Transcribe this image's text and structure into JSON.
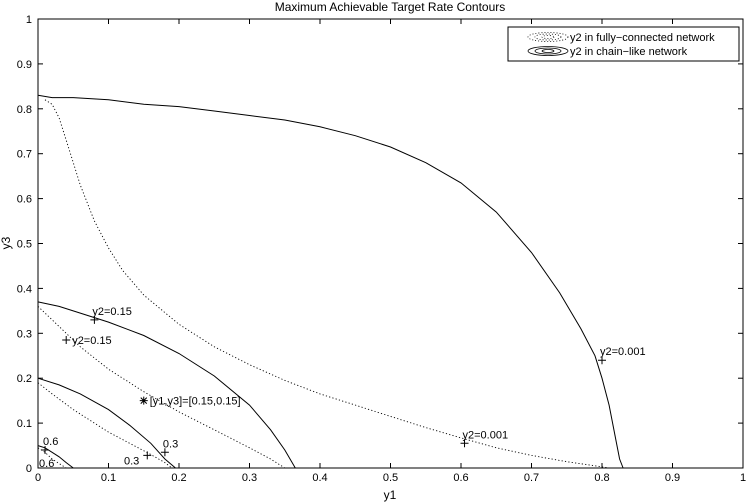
{
  "chart_data": {
    "type": "line",
    "title": "Maximum Achievable Target Rate Contours",
    "xlabel": "y1",
    "ylabel": "y3",
    "xlim": [
      0,
      1
    ],
    "ylim": [
      0,
      1
    ],
    "xticks": [
      "0",
      "0.1",
      "0.2",
      "0.3",
      "0.4",
      "0.5",
      "0.6",
      "0.7",
      "0.8",
      "0.9",
      "1"
    ],
    "yticks": [
      "0",
      "0.1",
      "0.2",
      "0.3",
      "0.4",
      "0.5",
      "0.6",
      "0.7",
      "0.8",
      "0.9",
      "1"
    ],
    "grid": false,
    "legend_position": "top-right",
    "legend": [
      {
        "label": "y2 in fully−connected network",
        "style": "dotted"
      },
      {
        "label": "y2 in chain−like network",
        "style": "solid"
      }
    ],
    "series": [
      {
        "legend": "y2 in fully−connected network",
        "style": "dotted",
        "level": "0.001",
        "points": [
          [
            0.01,
            0.82
          ],
          [
            0.02,
            0.81
          ],
          [
            0.03,
            0.78
          ],
          [
            0.04,
            0.73
          ],
          [
            0.05,
            0.68
          ],
          [
            0.06,
            0.63
          ],
          [
            0.08,
            0.55
          ],
          [
            0.1,
            0.49
          ],
          [
            0.12,
            0.44
          ],
          [
            0.15,
            0.385
          ],
          [
            0.2,
            0.32
          ],
          [
            0.25,
            0.27
          ],
          [
            0.3,
            0.23
          ],
          [
            0.35,
            0.195
          ],
          [
            0.4,
            0.165
          ],
          [
            0.45,
            0.14
          ],
          [
            0.5,
            0.115
          ],
          [
            0.55,
            0.09
          ],
          [
            0.6,
            0.067
          ],
          [
            0.65,
            0.045
          ],
          [
            0.7,
            0.028
          ],
          [
            0.75,
            0.014
          ],
          [
            0.79,
            0.005
          ],
          [
            0.81,
            0
          ]
        ]
      },
      {
        "legend": "y2 in fully−connected network",
        "style": "dotted",
        "level": "0.15",
        "points": [
          [
            0.0,
            0.36
          ],
          [
            0.02,
            0.33
          ],
          [
            0.04,
            0.3
          ],
          [
            0.06,
            0.27
          ],
          [
            0.08,
            0.245
          ],
          [
            0.1,
            0.22
          ],
          [
            0.15,
            0.17
          ],
          [
            0.2,
            0.125
          ],
          [
            0.25,
            0.085
          ],
          [
            0.3,
            0.045
          ],
          [
            0.33,
            0.02
          ],
          [
            0.35,
            0
          ]
        ]
      },
      {
        "legend": "y2 in fully−connected network",
        "style": "dotted",
        "level": "0.3",
        "points": [
          [
            0.0,
            0.19
          ],
          [
            0.02,
            0.165
          ],
          [
            0.05,
            0.13
          ],
          [
            0.08,
            0.1
          ],
          [
            0.1,
            0.08
          ],
          [
            0.13,
            0.055
          ],
          [
            0.16,
            0.03
          ],
          [
            0.18,
            0.012
          ],
          [
            0.19,
            0
          ]
        ]
      },
      {
        "legend": "y2 in fully−connected network",
        "style": "dotted",
        "level": "0.6",
        "points": [
          [
            0.0,
            0.045
          ],
          [
            0.01,
            0.035
          ],
          [
            0.02,
            0.02
          ],
          [
            0.03,
            0.01
          ],
          [
            0.04,
            0
          ]
        ]
      },
      {
        "legend": "y2 in chain−like network",
        "style": "solid",
        "level": "0.001",
        "points": [
          [
            0.0,
            0.83
          ],
          [
            0.02,
            0.825
          ],
          [
            0.05,
            0.825
          ],
          [
            0.1,
            0.82
          ],
          [
            0.15,
            0.81
          ],
          [
            0.2,
            0.805
          ],
          [
            0.25,
            0.795
          ],
          [
            0.3,
            0.785
          ],
          [
            0.35,
            0.775
          ],
          [
            0.4,
            0.76
          ],
          [
            0.45,
            0.74
          ],
          [
            0.5,
            0.715
          ],
          [
            0.55,
            0.68
          ],
          [
            0.6,
            0.635
          ],
          [
            0.65,
            0.57
          ],
          [
            0.7,
            0.48
          ],
          [
            0.74,
            0.39
          ],
          [
            0.77,
            0.31
          ],
          [
            0.79,
            0.25
          ],
          [
            0.8,
            0.2
          ],
          [
            0.81,
            0.14
          ],
          [
            0.815,
            0.1
          ],
          [
            0.82,
            0.06
          ],
          [
            0.825,
            0.02
          ],
          [
            0.83,
            0
          ]
        ]
      },
      {
        "legend": "y2 in chain−like network",
        "style": "solid",
        "level": "0.15",
        "points": [
          [
            0.0,
            0.37
          ],
          [
            0.03,
            0.36
          ],
          [
            0.06,
            0.345
          ],
          [
            0.1,
            0.325
          ],
          [
            0.15,
            0.295
          ],
          [
            0.2,
            0.255
          ],
          [
            0.25,
            0.205
          ],
          [
            0.3,
            0.14
          ],
          [
            0.33,
            0.085
          ],
          [
            0.35,
            0.04
          ],
          [
            0.365,
            0
          ]
        ]
      },
      {
        "legend": "y2 in chain−like network",
        "style": "solid",
        "level": "0.3",
        "points": [
          [
            0.0,
            0.2
          ],
          [
            0.03,
            0.185
          ],
          [
            0.06,
            0.165
          ],
          [
            0.1,
            0.13
          ],
          [
            0.13,
            0.095
          ],
          [
            0.16,
            0.055
          ],
          [
            0.18,
            0.02
          ],
          [
            0.195,
            0
          ]
        ]
      },
      {
        "legend": "y2 in chain−like network",
        "style": "solid",
        "level": "0.6",
        "points": [
          [
            0.0,
            0.05
          ],
          [
            0.01,
            0.045
          ],
          [
            0.02,
            0.035
          ],
          [
            0.03,
            0.025
          ],
          [
            0.04,
            0.012
          ],
          [
            0.05,
            0
          ]
        ]
      }
    ],
    "markers": [
      {
        "x": 0.08,
        "y": 0.33,
        "symbol": "+",
        "text": "y2=0.15",
        "anchor": "above"
      },
      {
        "x": 0.04,
        "y": 0.285,
        "symbol": "+",
        "text": "y2=0.15",
        "anchor": "right"
      },
      {
        "x": 0.15,
        "y": 0.15,
        "symbol": "*",
        "text": "[y1,y3]=[0.15,0.15]",
        "anchor": "right"
      },
      {
        "x": 0.8,
        "y": 0.24,
        "symbol": "+",
        "text": "y2=0.001",
        "anchor": "above"
      },
      {
        "x": 0.605,
        "y": 0.055,
        "symbol": "+",
        "text": "y2=0.001",
        "anchor": "above"
      },
      {
        "x": 0.18,
        "y": 0.035,
        "symbol": "+",
        "text": "0.3",
        "anchor": "above"
      },
      {
        "x": 0.155,
        "y": 0.028,
        "symbol": "+",
        "text": "0.3",
        "anchor": "left-below"
      },
      {
        "x": 0.01,
        "y": 0.04,
        "symbol": "+",
        "text": "0.6",
        "anchor": "above"
      },
      {
        "x": 0.01,
        "y": 0.04,
        "symbol": "",
        "text": "0.6",
        "anchor": "below"
      }
    ]
  }
}
